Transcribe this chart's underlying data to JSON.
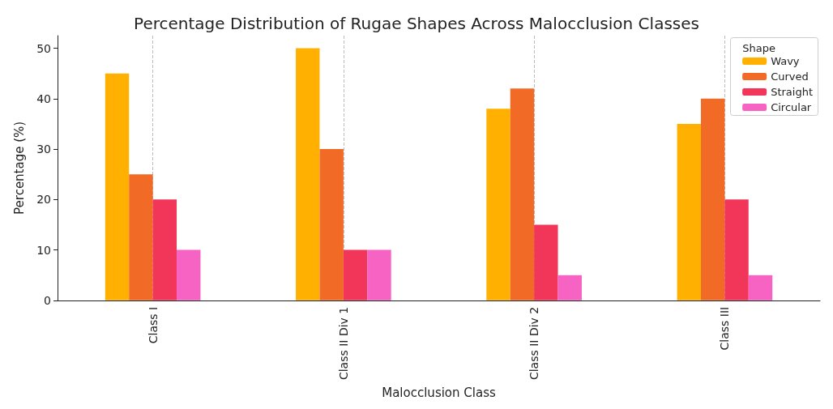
{
  "chart_data": {
    "type": "bar",
    "title": "Percentage Distribution of Rugae Shapes Across Malocclusion Classes",
    "xlabel": "Malocclusion Class",
    "ylabel": "Percentage (%)",
    "legend_title": "Shape",
    "categories": [
      "Class I",
      "Class II Div 1",
      "Class II Div 2",
      "Class III"
    ],
    "series": [
      {
        "name": "Wavy",
        "color": "#ffb000",
        "values": [
          45,
          50,
          38,
          35
        ]
      },
      {
        "name": "Curved",
        "color": "#f26b26",
        "values": [
          25,
          30,
          42,
          40
        ]
      },
      {
        "name": "Straight",
        "color": "#f2365a",
        "values": [
          20,
          10,
          15,
          20
        ]
      },
      {
        "name": "Circular",
        "color": "#f763c3",
        "values": [
          10,
          10,
          5,
          5
        ]
      }
    ],
    "ylim": [
      0,
      52.5
    ],
    "yticks": [
      0,
      10,
      20,
      30,
      40,
      50
    ],
    "grid": "x",
    "legend": "top right"
  }
}
